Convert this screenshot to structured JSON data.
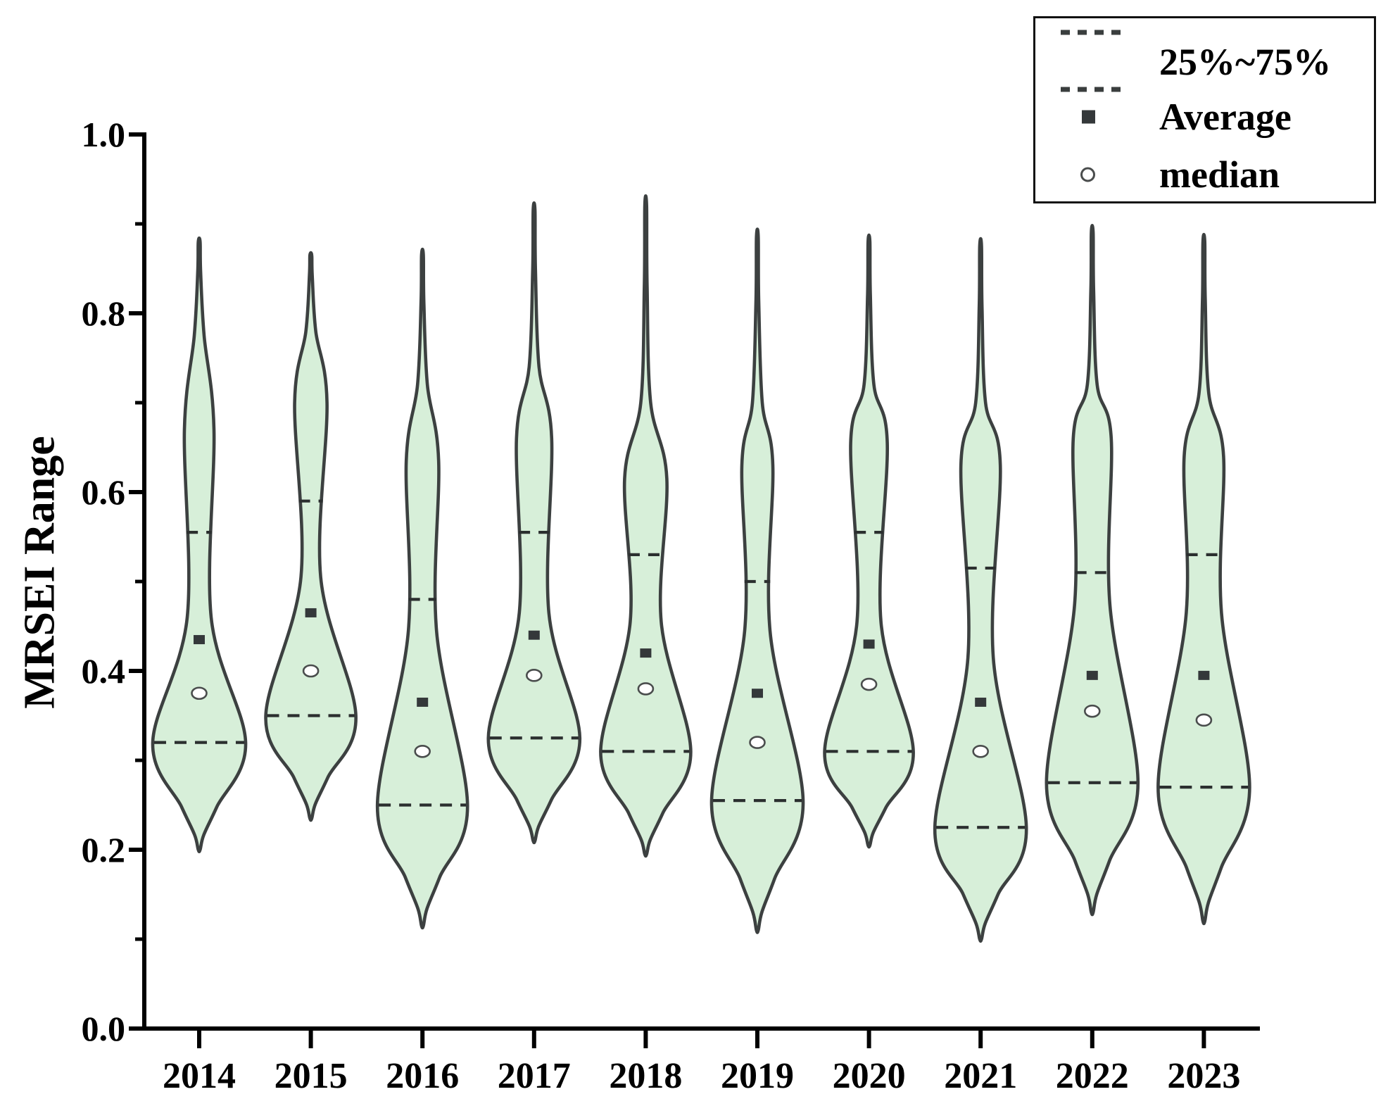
{
  "figure": {
    "background": "#ffffff"
  },
  "y_axis": {
    "title": "MRSEI Range",
    "tick_labels": [
      "0.0",
      "0.2",
      "0.4",
      "0.6",
      "0.8",
      "1.0"
    ],
    "tick_values": [
      0.0,
      0.2,
      0.4,
      0.6,
      0.8,
      1.0
    ],
    "minor_tick_values": [
      0.1,
      0.3,
      0.5,
      0.7,
      0.9
    ],
    "range": [
      0.0,
      1.0
    ]
  },
  "x_axis": {
    "categories": [
      "2014",
      "2015",
      "2016",
      "2017",
      "2018",
      "2019",
      "2020",
      "2021",
      "2022",
      "2023"
    ]
  },
  "legend": {
    "items": [
      {
        "symbol": "dashed-lines",
        "label": "25%~75%"
      },
      {
        "symbol": "filled-square",
        "label": "Average"
      },
      {
        "symbol": "open-circle",
        "label": "median"
      }
    ]
  },
  "colors": {
    "violin_fill": "#d7efd9",
    "violin_stroke": "#3c4040",
    "quartile_dash": "#2b2f2f",
    "mean_square": "#34383a",
    "median_circle_fill": "#ffffff",
    "median_circle_stroke": "#4a4d4d",
    "axis": "#000000"
  },
  "chart_data": {
    "type": "violin",
    "title": "",
    "xlabel": "",
    "ylabel": "MRSEI Range",
    "ylim": [
      0.0,
      1.0
    ],
    "grid": false,
    "legend_position": "top-right",
    "categories": [
      "2014",
      "2015",
      "2016",
      "2017",
      "2018",
      "2019",
      "2020",
      "2021",
      "2022",
      "2023"
    ],
    "series": [
      {
        "year": "2014",
        "min": 0.2,
        "q25": 0.32,
        "median": 0.375,
        "mean": 0.435,
        "q75": 0.555,
        "max": 0.88,
        "shape": {
          "bulge_top": 0.775,
          "upper_mode": 0.67,
          "upper_hw": 21,
          "neck": 0.46,
          "neck_hw": 17,
          "lower_hw": 66
        }
      },
      {
        "year": "2015",
        "min": 0.235,
        "q25": 0.35,
        "median": 0.4,
        "mean": 0.465,
        "q75": 0.59,
        "max": 0.865,
        "shape": {
          "bulge_top": 0.78,
          "upper_mode": 0.7,
          "upper_hw": 23,
          "neck": 0.505,
          "neck_hw": 14,
          "lower_hw": 64
        }
      },
      {
        "year": "2016",
        "min": 0.115,
        "q25": 0.25,
        "median": 0.31,
        "mean": 0.365,
        "q75": 0.48,
        "max": 0.865,
        "shape": {
          "bulge_top": 0.72,
          "upper_mode": 0.635,
          "upper_hw": 23,
          "neck": 0.445,
          "neck_hw": 20,
          "lower_hw": 64
        }
      },
      {
        "year": "2017",
        "min": 0.21,
        "q25": 0.325,
        "median": 0.395,
        "mean": 0.44,
        "q75": 0.555,
        "max": 0.915,
        "shape": {
          "bulge_top": 0.74,
          "upper_mode": 0.66,
          "upper_hw": 25,
          "neck": 0.465,
          "neck_hw": 21,
          "lower_hw": 65
        }
      },
      {
        "year": "2018",
        "min": 0.195,
        "q25": 0.31,
        "median": 0.38,
        "mean": 0.42,
        "q75": 0.53,
        "max": 0.92,
        "shape": {
          "bulge_top": 0.7,
          "upper_mode": 0.615,
          "upper_hw": 30,
          "neck": 0.455,
          "neck_hw": 22,
          "lower_hw": 64
        }
      },
      {
        "year": "2019",
        "min": 0.11,
        "q25": 0.255,
        "median": 0.32,
        "mean": 0.375,
        "q75": 0.5,
        "max": 0.885,
        "shape": {
          "bulge_top": 0.7,
          "upper_mode": 0.63,
          "upper_hw": 22,
          "neck": 0.445,
          "neck_hw": 18,
          "lower_hw": 65
        }
      },
      {
        "year": "2020",
        "min": 0.205,
        "q25": 0.31,
        "median": 0.385,
        "mean": 0.43,
        "q75": 0.555,
        "max": 0.88,
        "shape": {
          "bulge_top": 0.72,
          "upper_mode": 0.655,
          "upper_hw": 26,
          "neck": 0.455,
          "neck_hw": 17,
          "lower_hw": 63
        }
      },
      {
        "year": "2021",
        "min": 0.1,
        "q25": 0.225,
        "median": 0.31,
        "mean": 0.365,
        "q75": 0.515,
        "max": 0.875,
        "shape": {
          "bulge_top": 0.7,
          "upper_mode": 0.63,
          "upper_hw": 28,
          "neck": 0.415,
          "neck_hw": 18,
          "lower_hw": 65
        }
      },
      {
        "year": "2022",
        "min": 0.13,
        "q25": 0.275,
        "median": 0.355,
        "mean": 0.395,
        "q75": 0.51,
        "max": 0.89,
        "shape": {
          "bulge_top": 0.72,
          "upper_mode": 0.66,
          "upper_hw": 27,
          "neck": 0.475,
          "neck_hw": 25,
          "lower_hw": 65
        }
      },
      {
        "year": "2023",
        "min": 0.12,
        "q25": 0.27,
        "median": 0.345,
        "mean": 0.395,
        "q75": 0.53,
        "max": 0.88,
        "shape": {
          "bulge_top": 0.71,
          "upper_mode": 0.64,
          "upper_hw": 28,
          "neck": 0.465,
          "neck_hw": 25,
          "lower_hw": 65
        }
      }
    ]
  }
}
